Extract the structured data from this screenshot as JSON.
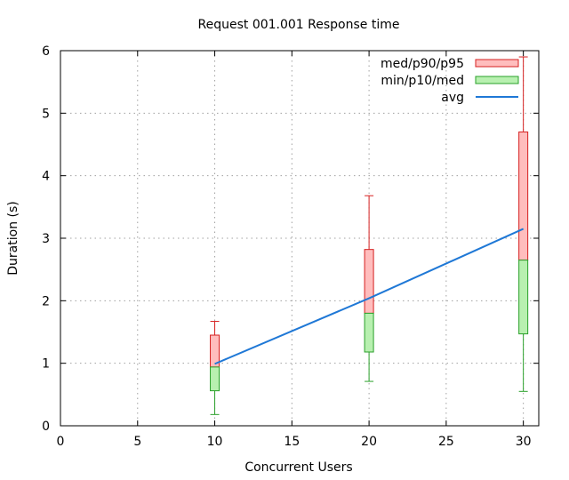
{
  "chart_data": {
    "type": "box",
    "title": "Request 001.001 Response time",
    "xlabel": "Concurrent Users",
    "ylabel": "Duration (s)",
    "xlim": [
      0,
      31
    ],
    "ylim": [
      0,
      6
    ],
    "xticks": [
      0,
      5,
      10,
      15,
      20,
      25,
      30
    ],
    "yticks": [
      0,
      1,
      2,
      3,
      4,
      5,
      6
    ],
    "grid": true,
    "legend_position": "top-right",
    "legend": [
      {
        "label": "med/p90/p95",
        "kind": "box",
        "fill": "#ffbdbd",
        "stroke": "#d62020"
      },
      {
        "label": "min/p10/med",
        "kind": "box",
        "fill": "#b8f0b0",
        "stroke": "#2aa02a"
      },
      {
        "label": "avg",
        "kind": "line",
        "stroke": "#1f78d6"
      }
    ],
    "x": [
      10,
      20,
      30
    ],
    "min": [
      0.18,
      0.71,
      0.55
    ],
    "p10": [
      0.56,
      1.18,
      1.47
    ],
    "med": [
      0.94,
      1.8,
      2.65
    ],
    "p90": [
      1.45,
      2.82,
      4.7
    ],
    "p95": [
      1.67,
      3.68,
      5.9
    ],
    "avg": [
      0.99,
      2.04,
      3.15
    ]
  }
}
